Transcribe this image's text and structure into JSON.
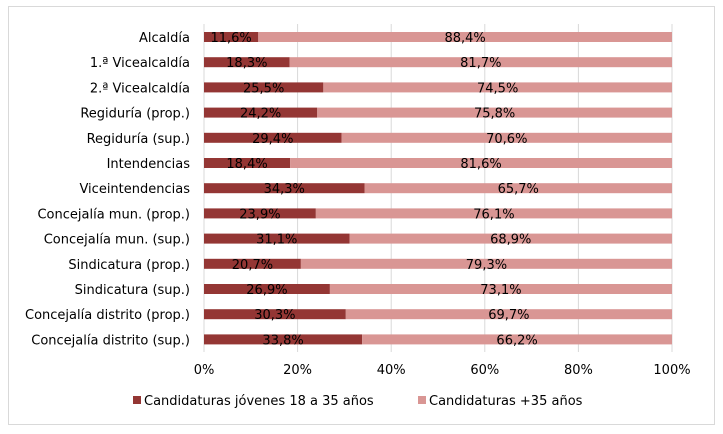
{
  "chart_data": {
    "type": "bar",
    "orientation": "horizontal",
    "stacked": "percent",
    "categories": [
      "Alcaldía",
      "1.ª Vicealcaldía",
      "2.ª Vicealcaldía",
      "Regiduría (prop.)",
      "Regiduría (sup.)",
      "Intendencias",
      "Viceintendencias",
      "Concejalía mun. (prop.)",
      "Concejalía mun. (sup.)",
      "Sindicatura (prop.)",
      "Sindicatura (sup.)",
      "Concejalía distrito (prop.)",
      "Concejalía distrito (sup.)"
    ],
    "series": [
      {
        "name": "Candidaturas jóvenes 18 a 35 años",
        "color": "#943634",
        "values": [
          11.6,
          18.3,
          25.5,
          24.2,
          29.4,
          18.4,
          34.3,
          23.9,
          31.1,
          20.7,
          26.9,
          30.3,
          33.8
        ],
        "labels": [
          "11,6%",
          "18,3%",
          "25,5%",
          "24,2%",
          "29,4%",
          "18,4%",
          "34,3%",
          "23,9%",
          "31,1%",
          "20,7%",
          "26,9%",
          "30,3%",
          "33,8%"
        ]
      },
      {
        "name": "Candidaturas +35 años",
        "color": "#D99694",
        "values": [
          88.4,
          81.7,
          74.5,
          75.8,
          70.6,
          81.6,
          65.7,
          76.1,
          68.9,
          79.3,
          73.1,
          69.7,
          66.2
        ],
        "labels": [
          "88,4%",
          "81,7%",
          "74,5%",
          "75,8%",
          "70,6%",
          "81,6%",
          "65,7%",
          "76,1%",
          "68,9%",
          "79,3%",
          "73,1%",
          "69,7%",
          "66,2%"
        ]
      }
    ],
    "xlim": [
      0,
      100
    ],
    "xticks": [
      "0%",
      "20%",
      "40%",
      "60%",
      "80%",
      "100%"
    ],
    "grid": true,
    "legend_position": "bottom"
  }
}
